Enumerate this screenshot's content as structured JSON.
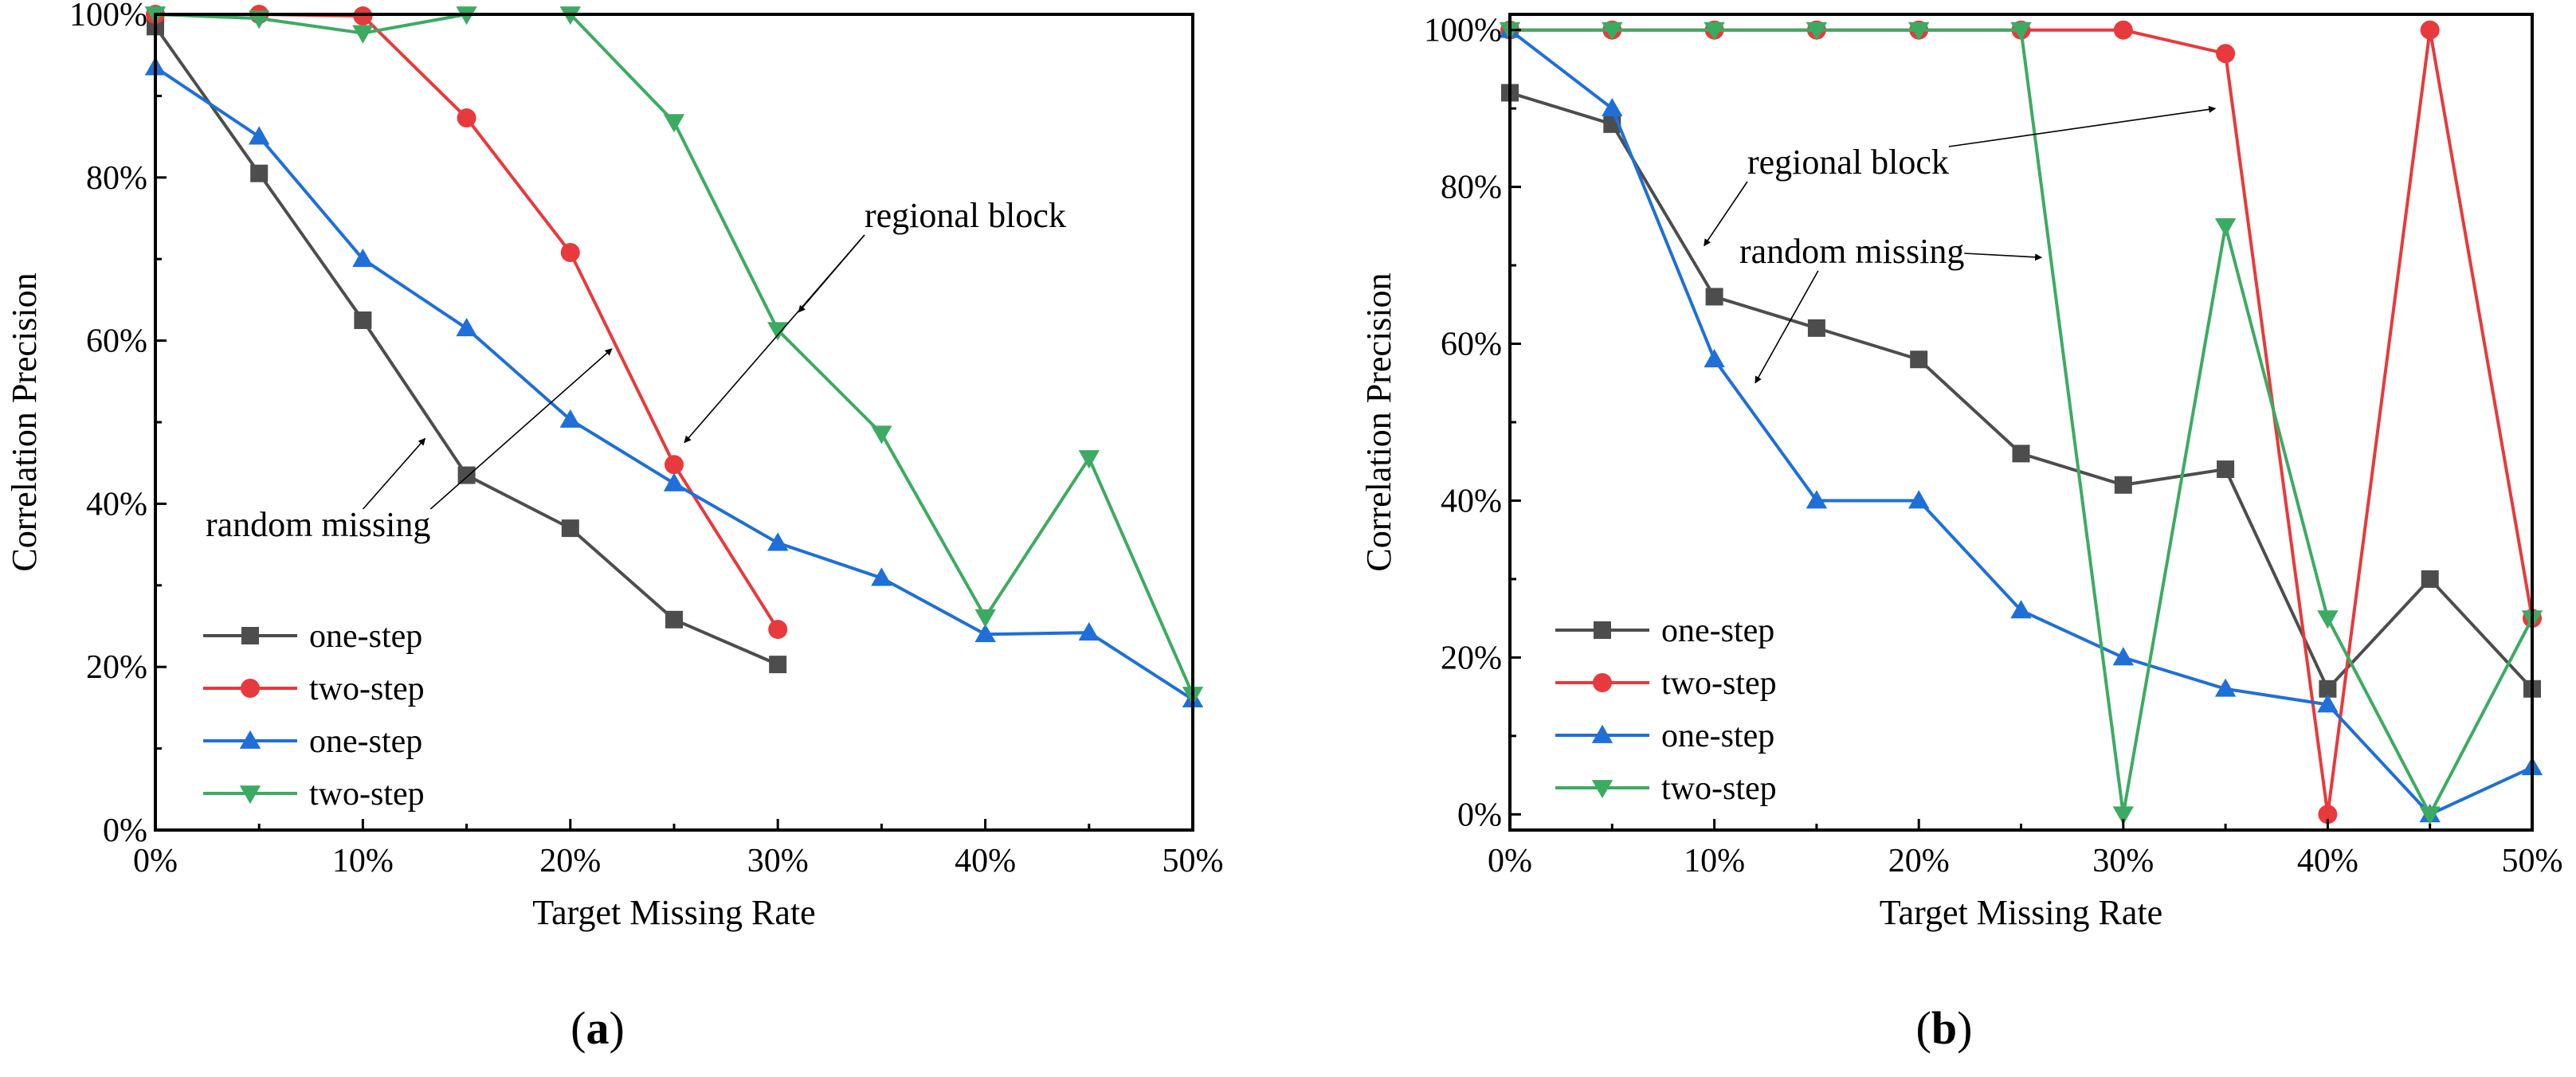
{
  "chart_data": [
    {
      "panel_label": "(a)",
      "panel_label_letter": "a",
      "type": "line",
      "xlabel": "Target Missing Rate",
      "ylabel": "Correlation Precision",
      "xlim": [
        0,
        50
      ],
      "ylim": [
        0,
        100
      ],
      "x_ticks": [
        "0%",
        "10%",
        "20%",
        "30%",
        "40%",
        "50%"
      ],
      "y_ticks": [
        "0%",
        "20%",
        "40%",
        "60%",
        "80%",
        "100%"
      ],
      "grid": false,
      "legend_position": "bottom-left",
      "series": [
        {
          "name": "one-step",
          "color": "#4d4d4d",
          "marker": "square",
          "x": [
            0,
            5,
            10,
            15,
            20,
            25,
            30
          ],
          "y": [
            98.5,
            80.5,
            62.5,
            43.5,
            37,
            25.8,
            20.3
          ]
        },
        {
          "name": "two-step",
          "color": "#e8393c",
          "marker": "circle",
          "x": [
            0,
            5,
            10,
            15,
            20,
            25,
            30
          ],
          "y": [
            100,
            100,
            99.8,
            87.3,
            70.8,
            44.8,
            24.6
          ]
        },
        {
          "name": "one-step",
          "color": "#1e6fd8",
          "marker": "triangle-up",
          "x": [
            0,
            5,
            10,
            15,
            20,
            25,
            30,
            35,
            40,
            45,
            50
          ],
          "y": [
            93.5,
            85,
            70,
            61.5,
            50.3,
            42.5,
            35.2,
            30.9,
            24,
            24.2,
            16
          ]
        },
        {
          "name": "two-step",
          "color": "#3cab62",
          "marker": "triangle-down",
          "x": [
            0,
            5,
            10,
            15,
            20,
            25,
            30,
            35,
            40,
            45,
            50
          ],
          "y": [
            100,
            99.5,
            97.7,
            100,
            100,
            86.8,
            61.3,
            48.6,
            26.1,
            45.6,
            16.6
          ]
        }
      ],
      "annotations": [
        {
          "text": "regional block",
          "targets": [
            [
              31,
              63.5
            ],
            [
              25.5,
              47.5
            ]
          ]
        },
        {
          "text": "random missing",
          "targets": [
            [
              13,
              48
            ],
            [
              22,
              59
            ]
          ]
        }
      ]
    },
    {
      "panel_label": "(b)",
      "panel_label_letter": "b",
      "type": "line",
      "xlabel": "Target Missing Rate",
      "ylabel": "Correlation Precision",
      "xlim": [
        0,
        50
      ],
      "ylim": [
        -2,
        102
      ],
      "x_ticks": [
        "0%",
        "10%",
        "20%",
        "30%",
        "40%",
        "50%"
      ],
      "y_ticks": [
        "0%",
        "20%",
        "40%",
        "60%",
        "80%",
        "100%"
      ],
      "grid": false,
      "legend_position": "bottom-left",
      "series": [
        {
          "name": "one-step",
          "color": "#4d4d4d",
          "marker": "square",
          "x": [
            0,
            5,
            10,
            15,
            20,
            25,
            30,
            35,
            40,
            45,
            50
          ],
          "y": [
            92,
            88,
            66,
            62,
            58,
            46,
            42,
            44,
            16,
            30,
            16
          ]
        },
        {
          "name": "two-step",
          "color": "#e8393c",
          "marker": "circle",
          "x": [
            0,
            5,
            10,
            15,
            20,
            25,
            30,
            35,
            40,
            45,
            50
          ],
          "y": [
            100,
            100,
            100,
            100,
            100,
            100,
            100,
            97,
            0,
            100,
            25
          ]
        },
        {
          "name": "one-step",
          "color": "#1e6fd8",
          "marker": "triangle-up",
          "x": [
            0,
            5,
            10,
            15,
            20,
            25,
            30,
            35,
            40,
            45,
            50
          ],
          "y": [
            100,
            90,
            58,
            40,
            40,
            26,
            20,
            16,
            14,
            0,
            6
          ]
        },
        {
          "name": "two-step",
          "color": "#3cab62",
          "marker": "triangle-down",
          "x": [
            0,
            5,
            10,
            15,
            20,
            25,
            30,
            35,
            40,
            45,
            50
          ],
          "y": [
            100,
            100,
            100,
            100,
            100,
            100,
            0,
            75,
            25,
            0,
            25
          ]
        }
      ],
      "annotations": [
        {
          "text": "regional block",
          "targets": [
            [
              34.5,
              90
            ],
            [
              9.5,
              72.5
            ]
          ]
        },
        {
          "text": "random missing",
          "targets": [
            [
              26,
              71
            ],
            [
              12,
              55
            ]
          ]
        }
      ]
    }
  ]
}
